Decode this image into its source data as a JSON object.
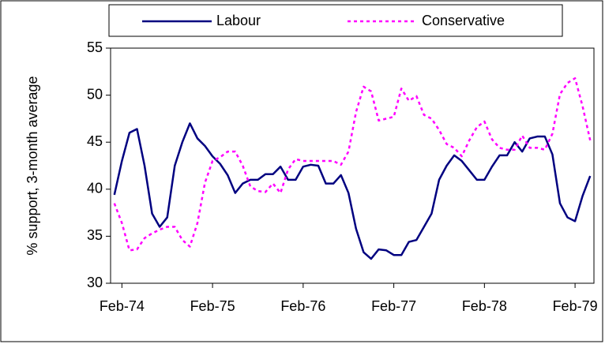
{
  "chart_data": {
    "type": "line",
    "y_label": "% support, 3-month average",
    "categories": [
      null,
      "Feb-74",
      null,
      null,
      null,
      null,
      null,
      null,
      null,
      null,
      null,
      null,
      null,
      "Feb-75",
      null,
      null,
      null,
      null,
      null,
      null,
      null,
      null,
      null,
      null,
      null,
      "Feb-76",
      null,
      null,
      null,
      null,
      null,
      null,
      null,
      null,
      null,
      null,
      null,
      "Feb-77",
      null,
      null,
      null,
      null,
      null,
      null,
      null,
      null,
      null,
      null,
      null,
      "Feb-78",
      null,
      null,
      null,
      null,
      null,
      null,
      null,
      null,
      null,
      null,
      null,
      "Feb-79",
      null,
      null
    ],
    "series": [
      {
        "name": "Labour",
        "color": "#000080",
        "dash": false,
        "values": [
          39.4,
          43,
          46,
          46.4,
          42.5,
          37.4,
          36,
          37,
          42.5,
          45,
          47,
          45.4,
          44.6,
          43.5,
          42.7,
          41.5,
          39.6,
          40.6,
          41,
          41,
          41.6,
          41.6,
          42.4,
          41,
          41,
          42.4,
          42.6,
          42.5,
          40.6,
          40.6,
          41.5,
          39.6,
          35.8,
          33.3,
          32.6,
          33.6,
          33.5,
          33,
          33,
          34.4,
          34.6,
          36,
          37.4,
          41,
          42.5,
          43.6,
          43,
          42,
          41,
          41,
          42.4,
          43.6,
          43.6,
          45,
          44,
          45.4,
          45.6,
          45.6,
          43.7,
          38.5,
          37,
          36.6,
          39.3,
          41.4
        ]
      },
      {
        "name": "Conservative",
        "color": "#ff00ff",
        "dash": true,
        "values": [
          38.5,
          36.4,
          33.5,
          33.6,
          34.8,
          35.3,
          35.7,
          36,
          36,
          34.6,
          33.9,
          36.4,
          40.7,
          43,
          43.4,
          44,
          44,
          42.5,
          40.3,
          39.8,
          39.7,
          40.6,
          39.6,
          42.1,
          43.2,
          43,
          43,
          43,
          43,
          43,
          42.6,
          44,
          48.2,
          50.9,
          50.4,
          47.3,
          47.5,
          47.7,
          50.7,
          49.4,
          49.9,
          47.9,
          47.5,
          46.3,
          44.8,
          44.4,
          43.5,
          45.2,
          46.6,
          47.2,
          45.3,
          44.4,
          44.2,
          44.2,
          45.7,
          44.4,
          44.4,
          44.2,
          45.9,
          50.1,
          51.3,
          51.8,
          48.8,
          45.2
        ]
      }
    ],
    "ylim": [
      30,
      55
    ],
    "yticks": [
      30,
      35,
      40,
      45,
      50,
      55
    ],
    "grid": false,
    "legend": "top"
  }
}
